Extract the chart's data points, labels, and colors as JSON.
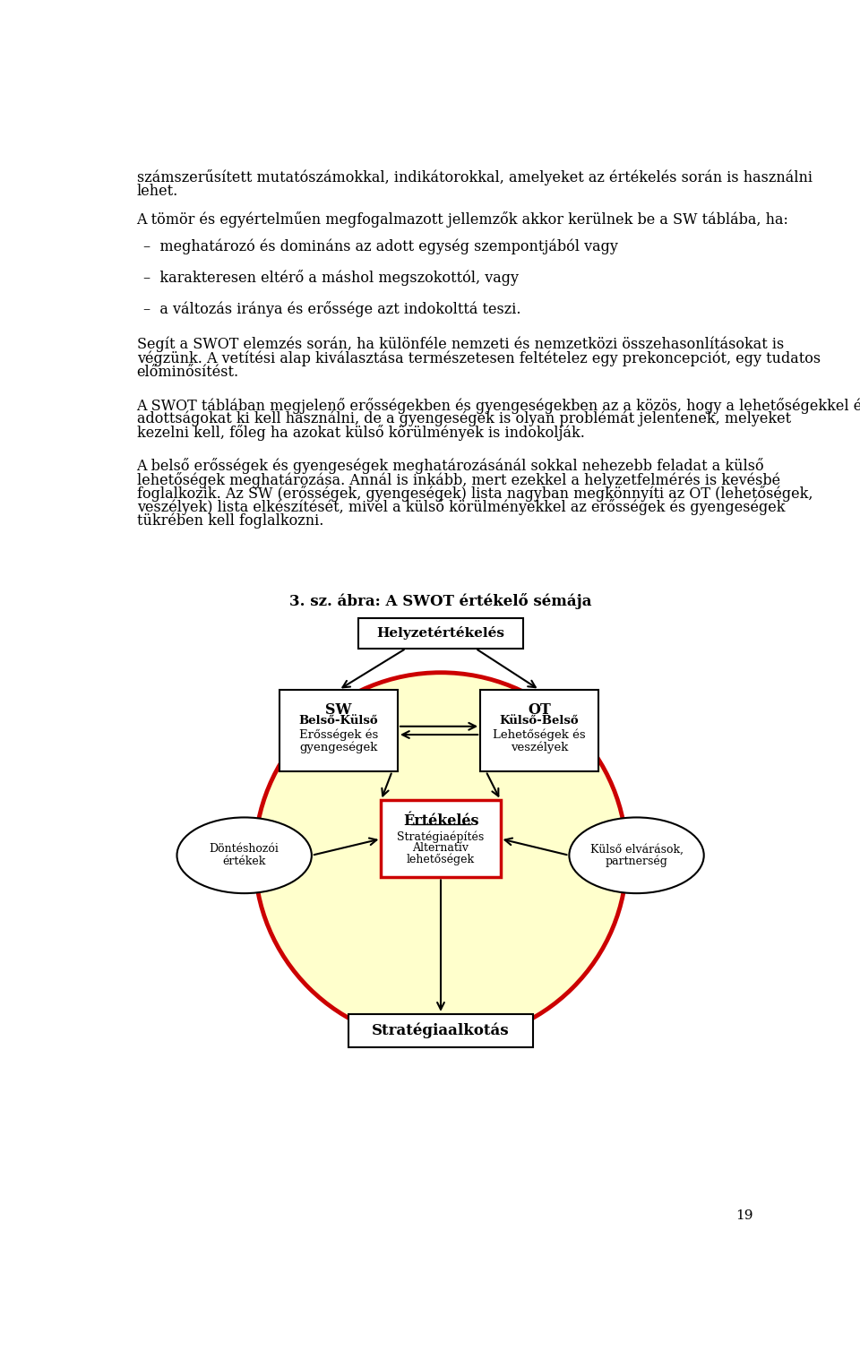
{
  "bg_color": "#ffffff",
  "circle_fill": "#ffffcc",
  "circle_edge": "#cc0000",
  "box_edge_black": "#000000",
  "box_edge_red": "#cc0000",
  "arrow_color": "#000000",
  "diagram_title": "3. sz. ábra: A SWOT értékelő sémája",
  "page_number": "19",
  "helyzetert_label": "Helyzetértékelés",
  "sw_line1": "SW",
  "sw_line2": "Belső-Külső",
  "sw_line3": "Erősségek és",
  "sw_line4": "gyengeségek",
  "ot_line1": "OT",
  "ot_line2": "Külső-Belső",
  "ot_line3": "Lehetőségek és",
  "ot_line4": "veszélyek",
  "ert_line1": "Értékelés",
  "ert_line2": "Stratégiaépítés",
  "ert_line3": "Alternatív",
  "ert_line4": "lehetőségek",
  "dv_line1": "Döntéshozói",
  "dv_line2": "értékek",
  "ke_line1": "Külső elvárások,",
  "ke_line2": "partnerség",
  "stra_label": "Stratégiaalkotás",
  "para1a": "számszerűsített mutatószámokkal, indikátorokkal, amelyeket az értékelés során is használni",
  "para1b": "lehet.",
  "para2": "A tömör és egyértelműen megfogalmazott jellemzők akkor kerülnek be a SW táblába, ha:",
  "bullet1": "–  meghatározó és domináns az adott egység szempontjából vagy",
  "bullet2": "–  karakteresen eltérő a máshol megszokottól, vagy",
  "bullet3": "–  a változás iránya és erőssége azt indokolttá teszi.",
  "para3a": "Segít a SWOT elemzés során, ha különféle nemzeti és nemzetközi összehasonlításokat is",
  "para3b": "végzünk. A vetítési alap kiválasztása természetesen feltételez egy prekoncepciót, egy tudatos",
  "para3c": "előminősítést.",
  "para4a": "A SWOT táblában megjelenő erősségekben és gyengeségekben az a közös, hogy a lehetőségekkel és veszélyekkel való összevetés után mindegyikkel valamit kezdeni kell. A kedvező",
  "para4b": "adottságokat ki kell használni, de a gyengeségek is olyan problémát jelentenek, melyeket",
  "para4c": "kezelni kell, főleg ha azokat külső körülmények is indokolják.",
  "para5a": "A belső erősségek és gyengeségek meghatározásánál sokkal nehezebb feladat a külső",
  "para5b": "lehetőségek meghatározása. Annál is inkább, mert ezekkel a helyzetfelmérés is kevésbé",
  "para5c": "foglalkozik. Az SW (erősségek, gyengeségek) lista nagyban megkönnyíti az OT (lehetőségek,",
  "para5d": "veszélyek) lista elkészítését, mivel a külső körülményekkel az erősségek és gyengeségek",
  "para5e": "tükrében kell foglalkozni."
}
